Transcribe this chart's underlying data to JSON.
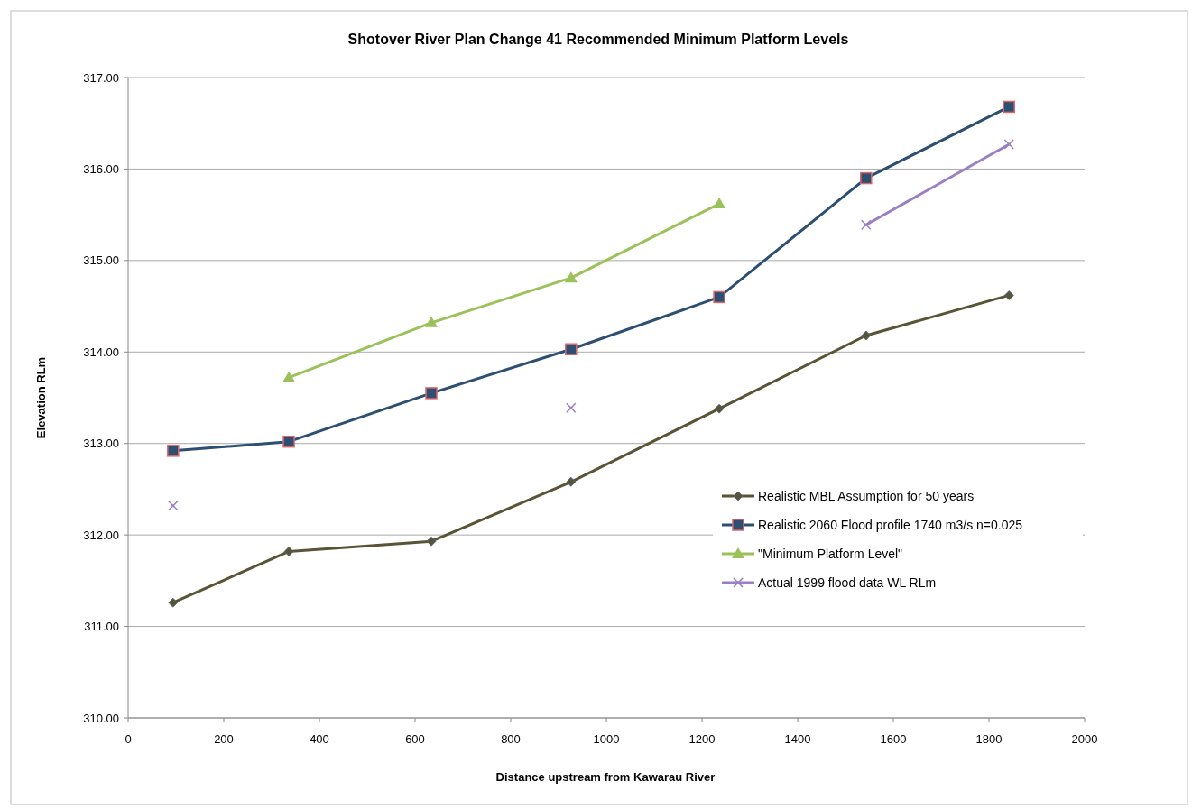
{
  "chart_data": {
    "type": "line",
    "title": "Shotover River Plan Change 41 Recommended Minimum Platform Levels",
    "xlabel": "Distance upstream from Kawarau River",
    "ylabel": "Elevation RLm",
    "x": [
      94,
      336,
      634,
      926,
      1236,
      1543,
      1842
    ],
    "series": [
      {
        "name": "Realistic MBL Assumption for 50 years",
        "color": "#5a5436",
        "marker": "diamond",
        "values": [
          311.26,
          311.82,
          311.93,
          312.58,
          313.38,
          314.18,
          314.62
        ]
      },
      {
        "name": "Realistic 2060 Flood profile 1740 m3/s n=0.025",
        "color": "#2c4f72",
        "marker": "square",
        "values": [
          312.92,
          313.02,
          313.55,
          314.03,
          314.6,
          315.9,
          316.68
        ]
      },
      {
        "name": "\"Minimum Platform Level\"",
        "color": "#9bc25a",
        "marker": "triangle",
        "values": [
          null,
          313.72,
          314.32,
          314.81,
          315.62,
          null,
          null
        ]
      },
      {
        "name": "Actual 1999 flood data WL RLm",
        "color": "#9b7fc4",
        "marker": "cross",
        "values": [
          312.32,
          null,
          null,
          313.39,
          null,
          315.39,
          316.27
        ]
      }
    ],
    "xlim": [
      0,
      2000
    ],
    "xticks": [
      0,
      200,
      400,
      600,
      800,
      1000,
      1200,
      1400,
      1600,
      1800,
      2000
    ],
    "ylim": [
      310,
      317
    ],
    "yticks": [
      {
        "value": 310,
        "label": "310.00"
      },
      {
        "value": 311,
        "label": "311.00"
      },
      {
        "value": 312,
        "label": "312.00"
      },
      {
        "value": 313,
        "label": "313.00"
      },
      {
        "value": 314,
        "label": "314.00"
      },
      {
        "value": 315,
        "label": "315.00"
      },
      {
        "value": 316,
        "label": "316.00"
      },
      {
        "value": 317,
        "label": "317.00"
      }
    ],
    "grid": "y",
    "legend": "right"
  }
}
